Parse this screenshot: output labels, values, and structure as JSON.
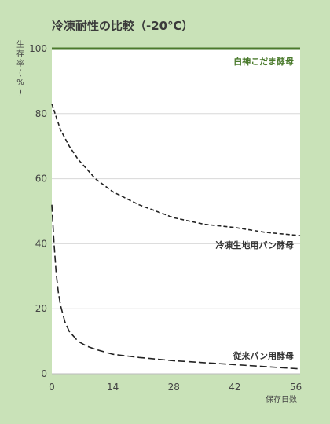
{
  "chart_data": {
    "type": "line",
    "title": "冷凍耐性の比較（-20℃）",
    "ylabel": "生存率(%)",
    "xlabel": "保存日数",
    "xlim": [
      0,
      57
    ],
    "ylim": [
      0,
      100
    ],
    "xticks": [
      0,
      14,
      28,
      42,
      56
    ],
    "yticks": [
      0,
      20,
      40,
      60,
      80,
      100
    ],
    "grid": true,
    "series": [
      {
        "name": "白神こだま酵母",
        "color": "#4a7a2c",
        "style": "solid",
        "x": [
          0,
          7,
          14,
          21,
          28,
          35,
          42,
          49,
          56,
          57
        ],
        "y": [
          100,
          100,
          100,
          100,
          100,
          100,
          100,
          100,
          100,
          100
        ]
      },
      {
        "name": "冷凍生地用パン酵母",
        "color": "#222222",
        "style": "dashed",
        "x": [
          0,
          1,
          2,
          4,
          6,
          8,
          10,
          14,
          20,
          28,
          35,
          42,
          49,
          57
        ],
        "y": [
          83,
          79,
          75,
          70,
          66,
          63,
          60,
          56,
          52,
          48,
          46,
          45,
          43.5,
          42.5
        ]
      },
      {
        "name": "従来パン用酵母",
        "color": "#222222",
        "style": "longdash",
        "x": [
          0,
          0.5,
          1,
          1.5,
          2,
          3,
          4,
          6,
          8,
          10,
          14,
          20,
          28,
          35,
          42,
          49,
          57
        ],
        "y": [
          52,
          40,
          31,
          25,
          21,
          16,
          13,
          10,
          8.5,
          7.5,
          6,
          5,
          4,
          3.4,
          2.8,
          2.2,
          1.5
        ]
      }
    ]
  }
}
